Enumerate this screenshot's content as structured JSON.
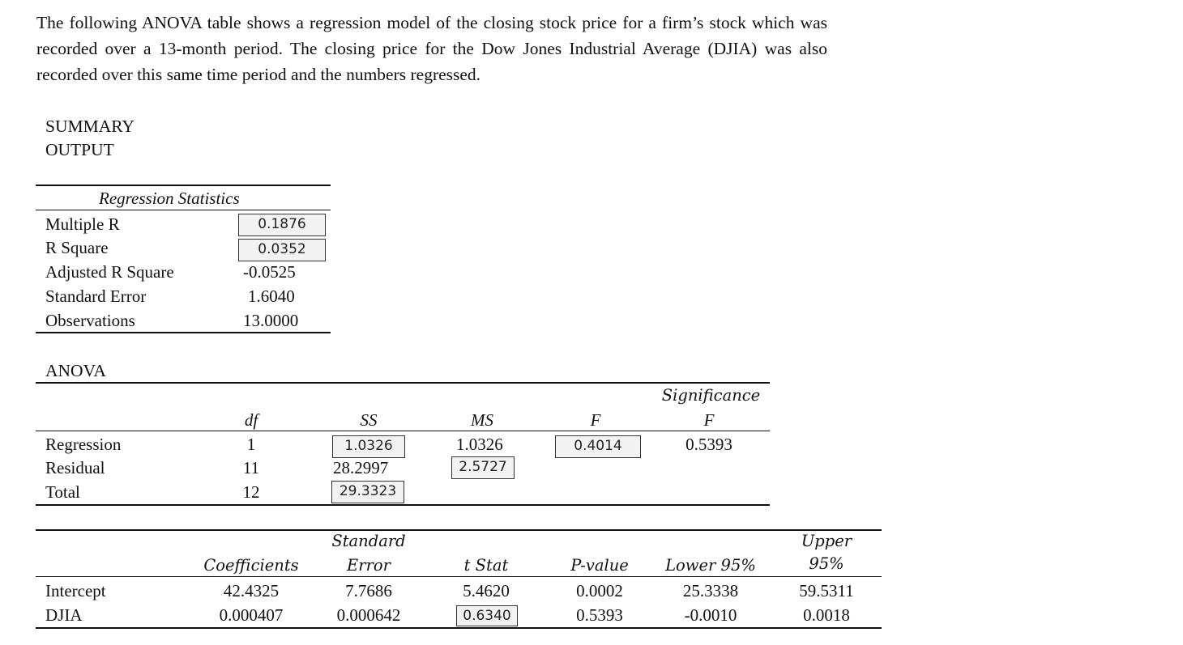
{
  "intro": "The following ANOVA table shows a regression model of the closing stock price for a firm’s stock which was recorded over a 13-month period. The closing price for the Dow Jones Industrial Average (DJIA) was also recorded over this same time period and the numbers regressed.",
  "summary_line1": "SUMMARY",
  "summary_line2": "OUTPUT",
  "regression_statistics": {
    "title": "Regression Statistics",
    "rows": [
      {
        "label": "Multiple R",
        "value": "0.1876"
      },
      {
        "label": "R Square",
        "value": "0.0352"
      },
      {
        "label": "Adjusted R Square",
        "value": "-0.0525"
      },
      {
        "label": "Standard Error",
        "value": "1.6040"
      },
      {
        "label": "Observations",
        "value": "13.0000"
      }
    ]
  },
  "anova": {
    "title": "ANOVA",
    "headers": {
      "df": "df",
      "ss": "SS",
      "ms": "MS",
      "f": "F",
      "sig1": "Significance",
      "sig2": "F"
    },
    "rows": [
      {
        "label": "Regression",
        "df": "1",
        "ss": "1.0326",
        "ms": "1.0326",
        "f": "0.4014",
        "sig": "0.5393"
      },
      {
        "label": "Residual",
        "df": "11",
        "ss": "28.2997",
        "ms": "2.5727"
      },
      {
        "label": "Total",
        "df": "12",
        "ss": "29.3323"
      }
    ]
  },
  "coefficients": {
    "headers": {
      "coef": "Coefficients",
      "se1": "Standard",
      "se2": "Error",
      "t": "t Stat",
      "p": "P-value",
      "lower": "Lower 95%",
      "upper1": "Upper",
      "upper2": "95%"
    },
    "rows": [
      {
        "label": "Intercept",
        "coef": "42.4325",
        "se": "7.7686",
        "t": "5.4620",
        "p": "0.0002",
        "lower": "25.3338",
        "upper": "59.5311"
      },
      {
        "label": "DJIA",
        "coef": "0.000407",
        "se": "0.000642",
        "t": "0.6340",
        "p": "0.5393",
        "lower": "-0.0010",
        "upper": "0.0018"
      }
    ]
  }
}
